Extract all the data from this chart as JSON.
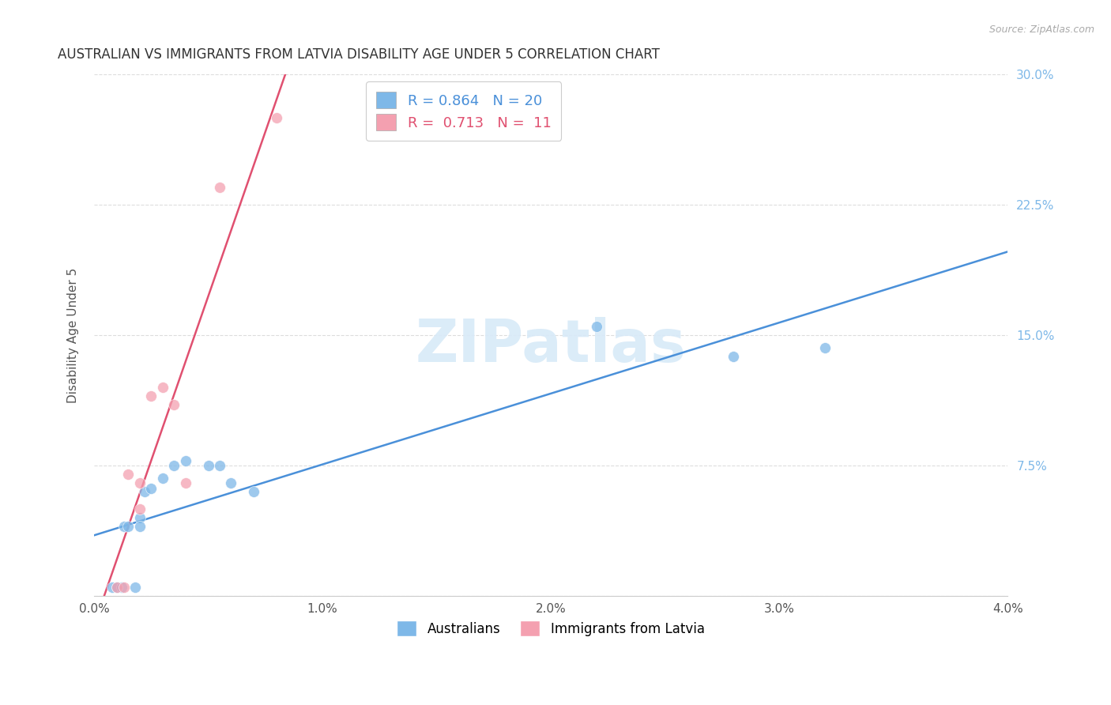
{
  "title": "AUSTRALIAN VS IMMIGRANTS FROM LATVIA DISABILITY AGE UNDER 5 CORRELATION CHART",
  "source": "Source: ZipAtlas.com",
  "ylabel": "Disability Age Under 5",
  "watermark": "ZIPatlas",
  "xlim": [
    0.0,
    0.04
  ],
  "ylim": [
    0.0,
    0.3
  ],
  "xticks": [
    0.0,
    0.01,
    0.02,
    0.03,
    0.04
  ],
  "yticks": [
    0.0,
    0.075,
    0.15,
    0.225,
    0.3
  ],
  "xtick_labels": [
    "0.0%",
    "1.0%",
    "2.0%",
    "3.0%",
    "4.0%"
  ],
  "ytick_labels": [
    "",
    "7.5%",
    "15.0%",
    "22.5%",
    "30.0%"
  ],
  "australians_x": [
    0.0008,
    0.001,
    0.0012,
    0.0013,
    0.0015,
    0.0018,
    0.002,
    0.002,
    0.0022,
    0.0025,
    0.003,
    0.0035,
    0.004,
    0.005,
    0.0055,
    0.006,
    0.007,
    0.022,
    0.028,
    0.032
  ],
  "australians_y": [
    0.005,
    0.005,
    0.005,
    0.04,
    0.04,
    0.005,
    0.045,
    0.04,
    0.06,
    0.062,
    0.068,
    0.075,
    0.078,
    0.075,
    0.075,
    0.065,
    0.06,
    0.155,
    0.138,
    0.143
  ],
  "latvia_x": [
    0.001,
    0.0013,
    0.0015,
    0.002,
    0.002,
    0.0025,
    0.003,
    0.0035,
    0.004,
    0.0055,
    0.008
  ],
  "latvia_y": [
    0.005,
    0.005,
    0.07,
    0.05,
    0.065,
    0.115,
    0.12,
    0.11,
    0.065,
    0.235,
    0.275
  ],
  "R_aus": 0.864,
  "N_aus": 20,
  "R_lat": 0.713,
  "N_lat": 11,
  "color_aus": "#7EB8E8",
  "color_lat": "#F4A0B0",
  "line_color_aus": "#4A90D9",
  "line_color_lat": "#E05070",
  "bg_color": "#FFFFFF",
  "grid_color": "#DDDDDD",
  "title_color": "#333333",
  "right_tick_color": "#7EB8E8",
  "marker_size": 100
}
